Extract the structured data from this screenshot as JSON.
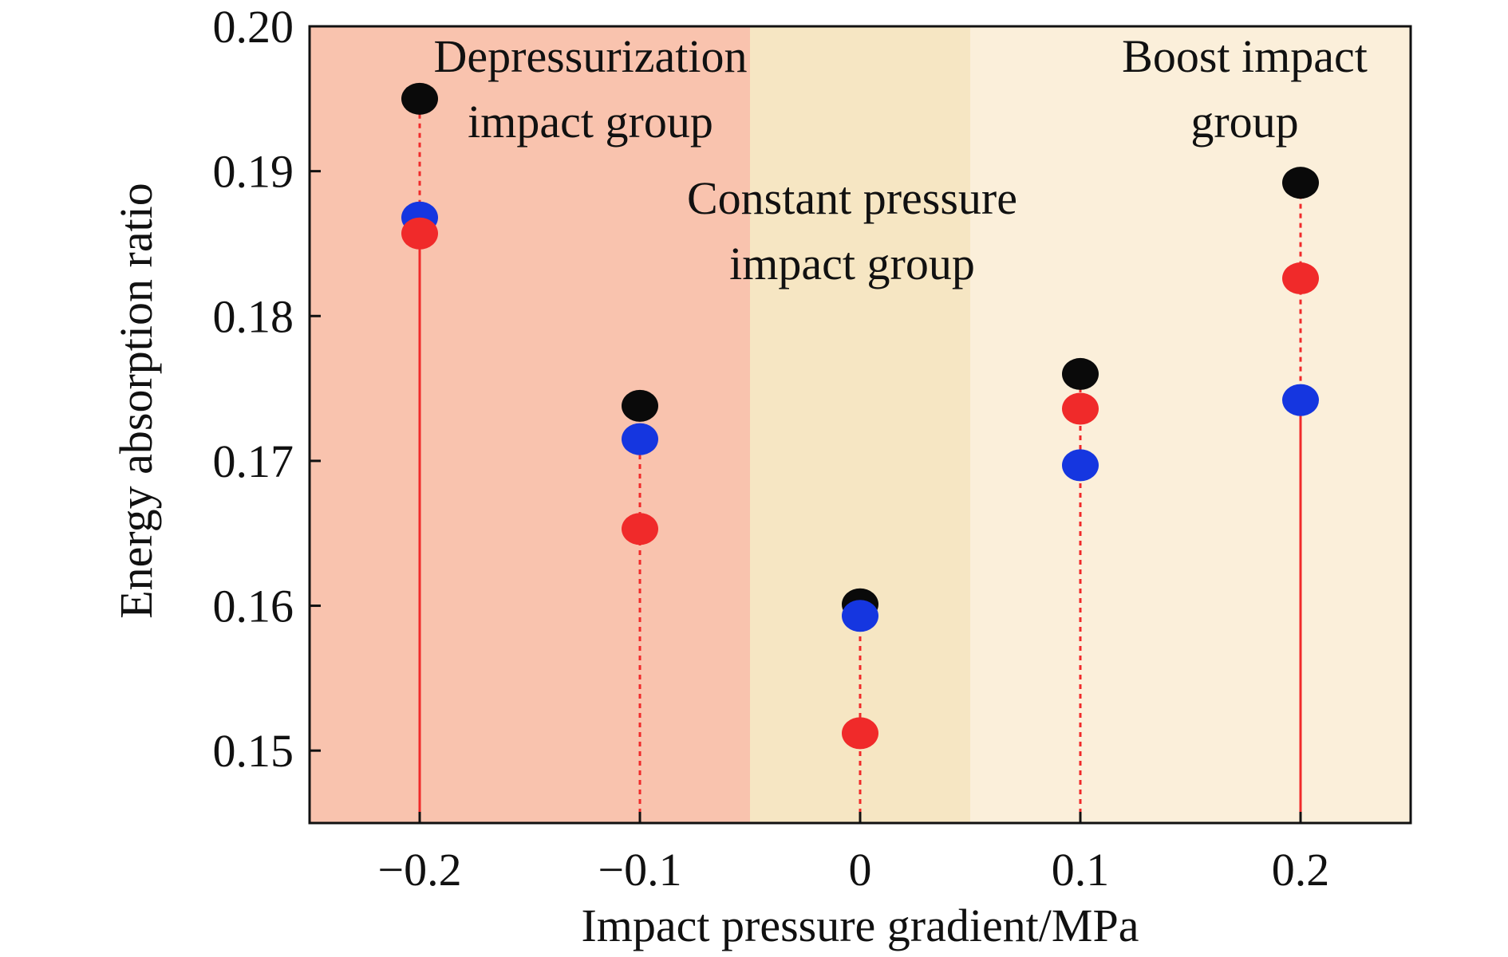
{
  "chart_data": {
    "type": "scatter",
    "xlabel": "Impact pressure gradient/MPa",
    "ylabel": "Energy absorption ratio",
    "xlim": [
      -0.25,
      0.25
    ],
    "ylim": [
      0.145,
      0.2
    ],
    "x": [
      -0.2,
      -0.1,
      0,
      0.1,
      0.2
    ],
    "x_tick_labels": [
      "−0.2",
      "−0.1",
      "0",
      "0.1",
      "0.2"
    ],
    "y_ticks": [
      0.15,
      0.16,
      0.17,
      0.18,
      0.19,
      0.2
    ],
    "y_tick_labels": [
      "0.15",
      "0.16",
      "0.17",
      "0.18",
      "0.19",
      "0.20"
    ],
    "series": [
      {
        "color": "#0a0a0a",
        "values": [
          0.195,
          0.1738,
          0.1601,
          0.176,
          0.1892
        ]
      },
      {
        "color": "#1536e0",
        "values": [
          0.1868,
          0.1715,
          0.1593,
          0.1697,
          0.1742
        ]
      },
      {
        "color": "#f02a2a",
        "values": [
          0.1857,
          0.1653,
          0.1512,
          0.1736,
          0.1826
        ]
      }
    ],
    "stem_color": "#f02a2a",
    "regions": [
      {
        "from": -0.25,
        "to": -0.05,
        "color": "#f9c3ae",
        "label_lines": [
          "Depressurization",
          "impact group"
        ]
      },
      {
        "from": -0.05,
        "to": 0.05,
        "color": "#f6e6c3",
        "label_lines": [
          "Constant pressure",
          "impact group"
        ]
      },
      {
        "from": 0.05,
        "to": 0.25,
        "color": "#fbefda",
        "label_lines": [
          "Boost impact",
          "group"
        ]
      }
    ],
    "grid": false,
    "legend": "none"
  }
}
